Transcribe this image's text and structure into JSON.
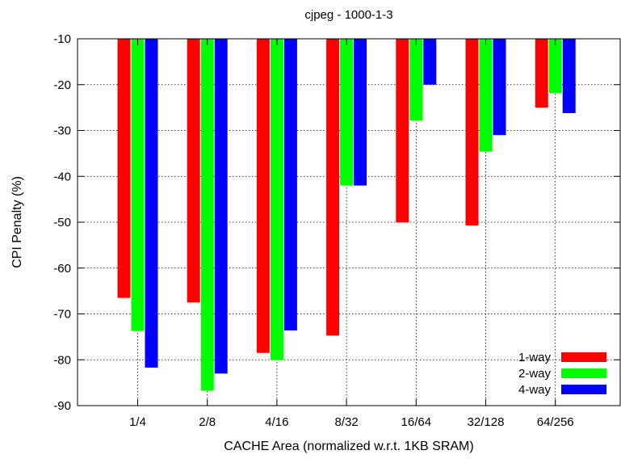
{
  "chart_data": {
    "type": "bar",
    "title": "cjpeg - 1000-1-3",
    "xlabel": "CACHE Area (normalized w.r.t. 1KB SRAM)",
    "ylabel": "CPI Penalty (%)",
    "ylim": [
      -90,
      -10
    ],
    "yticks": [
      "-10",
      "-20",
      "-30",
      "-40",
      "-50",
      "-60",
      "-70",
      "-80",
      "-90"
    ],
    "categories": [
      "1/4",
      "2/8",
      "4/16",
      "8/32",
      "16/64",
      "32/128",
      "64/256"
    ],
    "series": [
      {
        "name": "1-way",
        "color": "#ff0000",
        "values": [
          -66.5,
          -67.5,
          -78.5,
          -74.7,
          -50.0,
          -50.7,
          -25.0
        ]
      },
      {
        "name": "2-way",
        "color": "#00ff00",
        "values": [
          -73.7,
          -86.7,
          -80.0,
          -42.0,
          -27.8,
          -34.6,
          -21.8
        ]
      },
      {
        "name": "4-way",
        "color": "#0000ff",
        "values": [
          -81.7,
          -83.0,
          -73.6,
          -42.0,
          -20.0,
          -31.0,
          -26.2
        ]
      }
    ],
    "grid": true,
    "legend_position": "bottom-right"
  }
}
